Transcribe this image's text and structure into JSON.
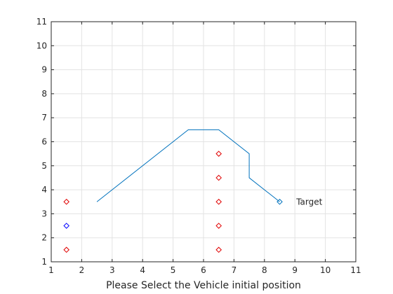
{
  "chart_data": {
    "type": "line",
    "xlabel": "Please Select the Vehicle initial position",
    "ylabel": "",
    "title": "",
    "xlim": [
      1,
      11
    ],
    "ylim": [
      1,
      11
    ],
    "xticks": [
      1,
      2,
      3,
      4,
      5,
      6,
      7,
      8,
      9,
      10,
      11
    ],
    "yticks": [
      1,
      2,
      3,
      4,
      5,
      6,
      7,
      8,
      9,
      10,
      11
    ],
    "grid": true,
    "series": [
      {
        "kind": "line",
        "color": "#0072BD",
        "points": [
          [
            2.5,
            3.5
          ],
          [
            5.5,
            6.5
          ],
          [
            6.5,
            6.5
          ],
          [
            7.5,
            5.5
          ],
          [
            7.5,
            4.5
          ],
          [
            8.5,
            3.5
          ]
        ]
      },
      {
        "kind": "scatter",
        "marker": "diamond",
        "color": "#e00000",
        "points": [
          [
            1.5,
            3.5
          ],
          [
            1.5,
            1.5
          ],
          [
            6.5,
            5.5
          ],
          [
            6.5,
            4.5
          ],
          [
            6.5,
            3.5
          ],
          [
            6.5,
            2.5
          ],
          [
            6.5,
            1.5
          ]
        ]
      },
      {
        "kind": "scatter",
        "marker": "diamond",
        "color": "#0000ff",
        "points": [
          [
            1.5,
            2.5
          ]
        ]
      },
      {
        "kind": "scatter",
        "marker": "diamond",
        "color": "#0072BD",
        "points": [
          [
            8.5,
            3.5
          ]
        ]
      }
    ],
    "annotations": [
      {
        "text": "Target",
        "x": 9,
        "y": 3.5
      }
    ]
  }
}
